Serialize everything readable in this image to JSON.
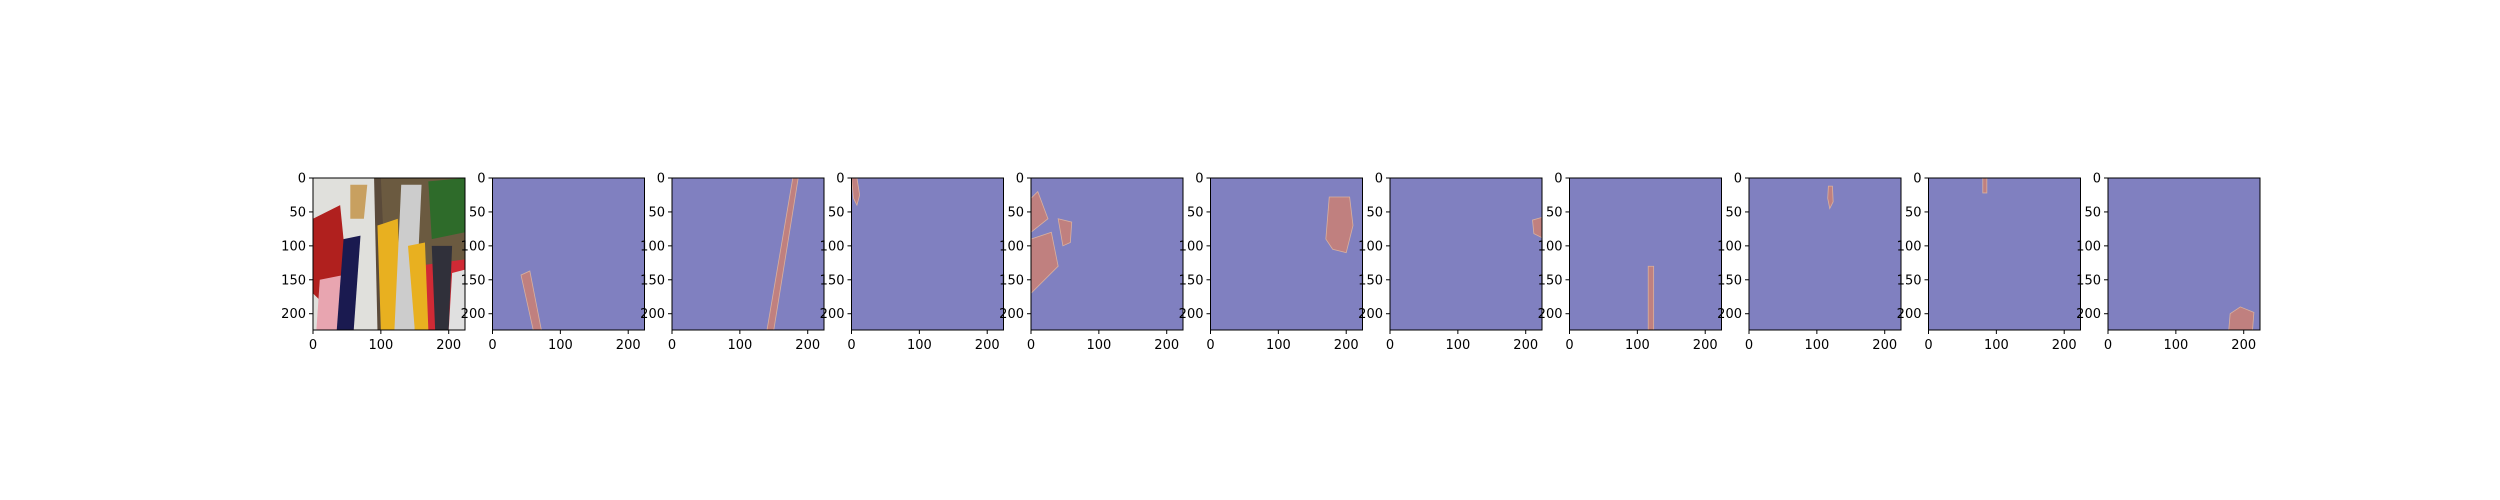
{
  "chart_data": {
    "type": "image-grid",
    "panel_count": 11,
    "x_ticks": [
      0,
      100,
      200
    ],
    "y_ticks": [
      0,
      50,
      100,
      150,
      200
    ],
    "xlim": [
      0,
      224
    ],
    "ylim": [
      224,
      0
    ],
    "mask_background_color": "#8080c0",
    "mask_foreground_color": "#c0807f",
    "panels": [
      {
        "kind": "photo",
        "background": "#5a4a3a",
        "regions": [
          {
            "color": "#e0e0dc",
            "points": [
              [
                0,
                0
              ],
              [
                90,
                0
              ],
              [
                95,
                224
              ],
              [
                0,
                224
              ]
            ]
          },
          {
            "color": "#6b5a40",
            "points": [
              [
                100,
                0
              ],
              [
                224,
                0
              ],
              [
                224,
                224
              ],
              [
                110,
                224
              ]
            ]
          },
          {
            "color": "#b0201e",
            "points": [
              [
                0,
                60
              ],
              [
                40,
                40
              ],
              [
                50,
                140
              ],
              [
                10,
                180
              ],
              [
                0,
                170
              ]
            ]
          },
          {
            "color": "#d02a35",
            "points": [
              [
                150,
                130
              ],
              [
                224,
                120
              ],
              [
                224,
                224
              ],
              [
                160,
                224
              ]
            ]
          },
          {
            "color": "#e8a5b0",
            "points": [
              [
                10,
                150
              ],
              [
                60,
                140
              ],
              [
                60,
                224
              ],
              [
                5,
                224
              ]
            ]
          },
          {
            "color": "#2e6b2a",
            "points": [
              [
                170,
                5
              ],
              [
                224,
                0
              ],
              [
                224,
                80
              ],
              [
                175,
                90
              ]
            ]
          },
          {
            "color": "#e8b020",
            "points": [
              [
                95,
                70
              ],
              [
                125,
                60
              ],
              [
                130,
                224
              ],
              [
                100,
                224
              ]
            ]
          },
          {
            "color": "#1a1a50",
            "points": [
              [
                45,
                90
              ],
              [
                70,
                85
              ],
              [
                60,
                224
              ],
              [
                35,
                224
              ]
            ]
          },
          {
            "color": "#cccccc",
            "points": [
              [
                130,
                10
              ],
              [
                160,
                10
              ],
              [
                150,
                224
              ],
              [
                120,
                224
              ]
            ]
          },
          {
            "color": "#e8b020",
            "points": [
              [
                140,
                100
              ],
              [
                165,
                95
              ],
              [
                170,
                224
              ],
              [
                150,
                224
              ]
            ]
          },
          {
            "color": "#30303a",
            "points": [
              [
                175,
                100
              ],
              [
                205,
                100
              ],
              [
                200,
                224
              ],
              [
                180,
                224
              ]
            ]
          },
          {
            "color": "#c8a060",
            "points": [
              [
                55,
                10
              ],
              [
                80,
                10
              ],
              [
                75,
                60
              ],
              [
                55,
                60
              ]
            ]
          },
          {
            "color": "#e0e0e0",
            "points": [
              [
                205,
                140
              ],
              [
                224,
                135
              ],
              [
                224,
                224
              ],
              [
                200,
                224
              ]
            ]
          }
        ]
      },
      {
        "kind": "mask",
        "regions": [
          [
            [
              42,
              143
            ],
            [
              55,
              137
            ],
            [
              72,
              224
            ],
            [
              60,
              224
            ]
          ]
        ]
      },
      {
        "kind": "mask",
        "regions": [
          [
            [
              178,
              0
            ],
            [
              186,
              0
            ],
            [
              150,
              224
            ],
            [
              140,
              224
            ]
          ]
        ]
      },
      {
        "kind": "mask",
        "regions": [
          [
            [
              0,
              0
            ],
            [
              8,
              0
            ],
            [
              12,
              25
            ],
            [
              8,
              40
            ],
            [
              3,
              30
            ]
          ]
        ]
      },
      {
        "kind": "mask",
        "regions": [
          [
            [
              0,
              30
            ],
            [
              10,
              20
            ],
            [
              25,
              60
            ],
            [
              0,
              80
            ]
          ],
          [
            [
              0,
              90
            ],
            [
              30,
              80
            ],
            [
              40,
              130
            ],
            [
              0,
              170
            ]
          ],
          [
            [
              40,
              60
            ],
            [
              60,
              65
            ],
            [
              58,
              95
            ],
            [
              47,
              100
            ]
          ]
        ]
      },
      {
        "kind": "mask",
        "regions": [
          [
            [
              175,
              28
            ],
            [
              205,
              28
            ],
            [
              210,
              70
            ],
            [
              200,
              110
            ],
            [
              180,
              105
            ],
            [
              170,
              90
            ]
          ]
        ]
      },
      {
        "kind": "mask",
        "regions": [
          [
            [
              210,
              62
            ],
            [
              224,
              58
            ],
            [
              224,
              88
            ],
            [
              212,
              82
            ]
          ]
        ]
      },
      {
        "kind": "mask",
        "regions": [
          [
            [
              116,
              130
            ],
            [
              124,
              130
            ],
            [
              124,
              224
            ],
            [
              116,
              224
            ]
          ]
        ]
      },
      {
        "kind": "mask",
        "regions": [
          [
            [
              117,
              12
            ],
            [
              123,
              12
            ],
            [
              124,
              35
            ],
            [
              119,
              45
            ],
            [
              116,
              30
            ]
          ]
        ]
      },
      {
        "kind": "mask",
        "regions": [
          [
            [
              80,
              0
            ],
            [
              86,
              0
            ],
            [
              86,
              22
            ],
            [
              80,
              22
            ]
          ]
        ]
      },
      {
        "kind": "mask",
        "regions": [
          [
            [
              180,
              200
            ],
            [
              195,
              190
            ],
            [
              215,
              198
            ],
            [
              213,
              224
            ],
            [
              178,
              224
            ]
          ]
        ]
      }
    ]
  }
}
